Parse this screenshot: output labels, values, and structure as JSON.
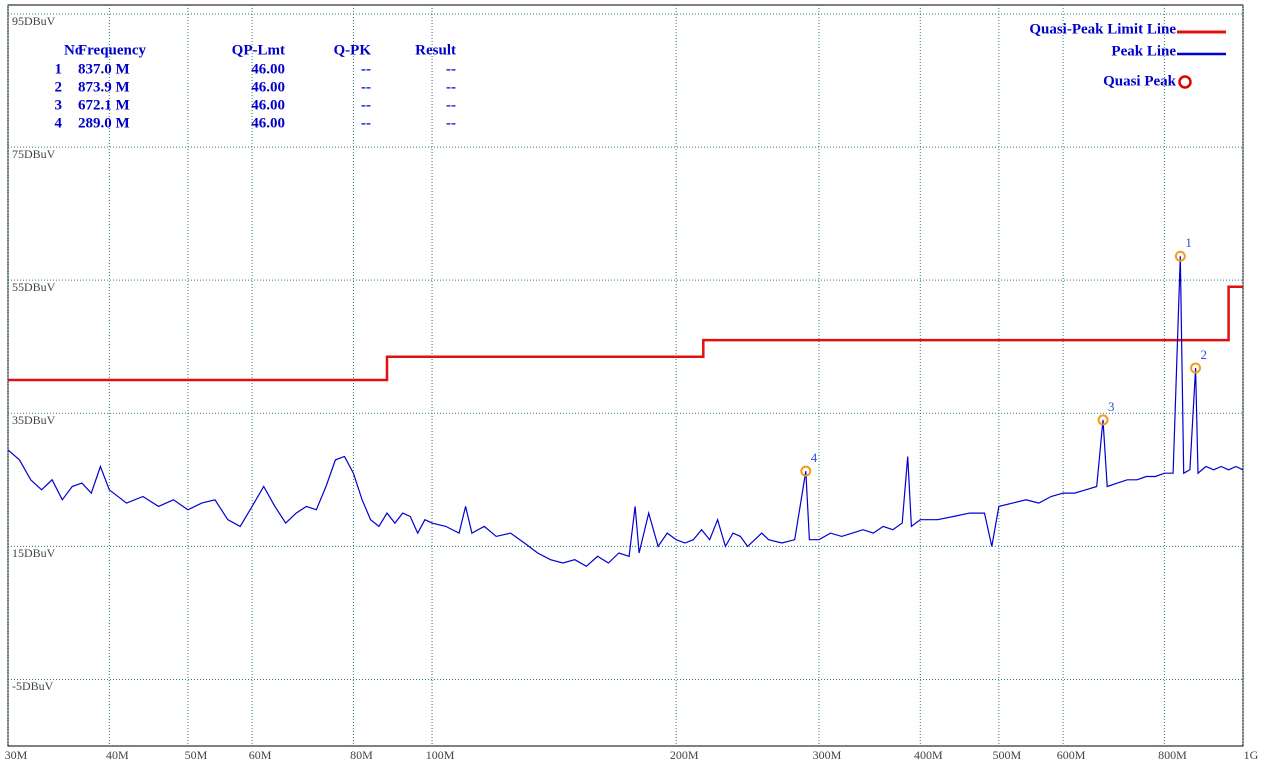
{
  "chart_data": {
    "type": "line",
    "xscale": "log",
    "grid": true,
    "legend": "top-right",
    "xlim": [
      30,
      1000
    ],
    "xticks": [
      {
        "value": 30,
        "label": "30M"
      },
      {
        "value": 40,
        "label": "40M"
      },
      {
        "value": 50,
        "label": "50M"
      },
      {
        "value": 60,
        "label": "60M"
      },
      {
        "value": 80,
        "label": "80M"
      },
      {
        "value": 100,
        "label": "100M"
      },
      {
        "value": 200,
        "label": "200M"
      },
      {
        "value": 300,
        "label": "300M"
      },
      {
        "value": 400,
        "label": "400M"
      },
      {
        "value": 500,
        "label": "500M"
      },
      {
        "value": 600,
        "label": "600M"
      },
      {
        "value": 800,
        "label": "800M"
      },
      {
        "value": 1000,
        "label": "1G"
      }
    ],
    "ylim": [
      -15,
      95
    ],
    "yticks": [
      {
        "value": 95,
        "label": "95DBuV"
      },
      {
        "value": 75,
        "label": "75DBuV"
      },
      {
        "value": 55,
        "label": "55DBuV"
      },
      {
        "value": 35,
        "label": "35DBuV"
      },
      {
        "value": 15,
        "label": "15DBuV"
      },
      {
        "value": -5,
        "label": "-5DBuV"
      }
    ],
    "series": [
      {
        "name": "Quasi-Peak Limit Line",
        "color": "#e01010",
        "x": [
          30,
          88,
          88,
          216,
          216,
          960,
          960,
          1000
        ],
        "values": [
          40,
          40,
          43.5,
          43.5,
          46,
          46,
          54,
          54
        ]
      },
      {
        "name": "Peak Line",
        "color": "#0000d0",
        "x": [
          30,
          31,
          32,
          33,
          34,
          35,
          36,
          37,
          38,
          39,
          40,
          42,
          44,
          46,
          48,
          50,
          52,
          54,
          56,
          58,
          60,
          62,
          64,
          66,
          68,
          70,
          72,
          74,
          76,
          78,
          80,
          82,
          84,
          86,
          88,
          90,
          92,
          94,
          96,
          98,
          100,
          104,
          108,
          110,
          112,
          116,
          120,
          125,
          130,
          135,
          140,
          145,
          150,
          155,
          160,
          165,
          170,
          175,
          178,
          180,
          185,
          190,
          195,
          200,
          205,
          210,
          215,
          220,
          225,
          230,
          235,
          240,
          245,
          250,
          255,
          260,
          270,
          280,
          289,
          292,
          300,
          310,
          320,
          330,
          340,
          350,
          360,
          370,
          380,
          386,
          390,
          400,
          420,
          440,
          460,
          480,
          490,
          500,
          520,
          540,
          560,
          580,
          600,
          620,
          640,
          660,
          672,
          680,
          700,
          720,
          740,
          760,
          780,
          800,
          820,
          837,
          845,
          860,
          874,
          880,
          900,
          920,
          940,
          960,
          980,
          1000
        ],
        "values": [
          29.5,
          28,
          25,
          23.5,
          25,
          22,
          24,
          24.5,
          23,
          27,
          23.5,
          21.5,
          22.5,
          21,
          22,
          20.5,
          21.5,
          22,
          19,
          18,
          21,
          24,
          21,
          18.5,
          20,
          21,
          20.5,
          24,
          28,
          28.5,
          26,
          22,
          19,
          18,
          20,
          18.5,
          20,
          19.5,
          17,
          19,
          18.5,
          18,
          17,
          21,
          17,
          18,
          16.5,
          17,
          15.5,
          14,
          13,
          12.5,
          13,
          12,
          13.5,
          12.5,
          14,
          13.5,
          21,
          14,
          20,
          15,
          17,
          16,
          15.5,
          16,
          17.5,
          16,
          19,
          15,
          17,
          16.5,
          15,
          16,
          17,
          16,
          15.5,
          16,
          26.3,
          16,
          16,
          17,
          16.5,
          17,
          17.5,
          17,
          18,
          17.5,
          18.5,
          28.5,
          18,
          19,
          19,
          19.5,
          20,
          20,
          15,
          21,
          21.5,
          22,
          21.5,
          22.5,
          23,
          23,
          23.5,
          24,
          34,
          24,
          24.5,
          25,
          25,
          25.5,
          25.5,
          26,
          26,
          58.6,
          26,
          26.5,
          41.8,
          26,
          27,
          26.5,
          27,
          26.5,
          27,
          26.5
        ]
      }
    ],
    "markers": {
      "name": "Quasi Peak",
      "color": "#f29b1d",
      "legend_color": "#e00000",
      "ids": [
        1,
        2,
        3,
        4
      ],
      "x": [
        837,
        873.9,
        672.1,
        289
      ],
      "values": [
        58.6,
        41.8,
        34,
        26.3
      ]
    }
  },
  "table": {
    "columns": [
      "No",
      "Frequency",
      "QP-Lmt",
      "Q-PK",
      "Result"
    ],
    "rows": [
      [
        "1",
        "837.0 M",
        "46.00",
        "--",
        "--"
      ],
      [
        "2",
        "873.9 M",
        "46.00",
        "--",
        "--"
      ],
      [
        "3",
        "672.1 M",
        "46.00",
        "--",
        "--"
      ],
      [
        "4",
        "289.0 M",
        "46.00",
        "--",
        "--"
      ]
    ]
  }
}
